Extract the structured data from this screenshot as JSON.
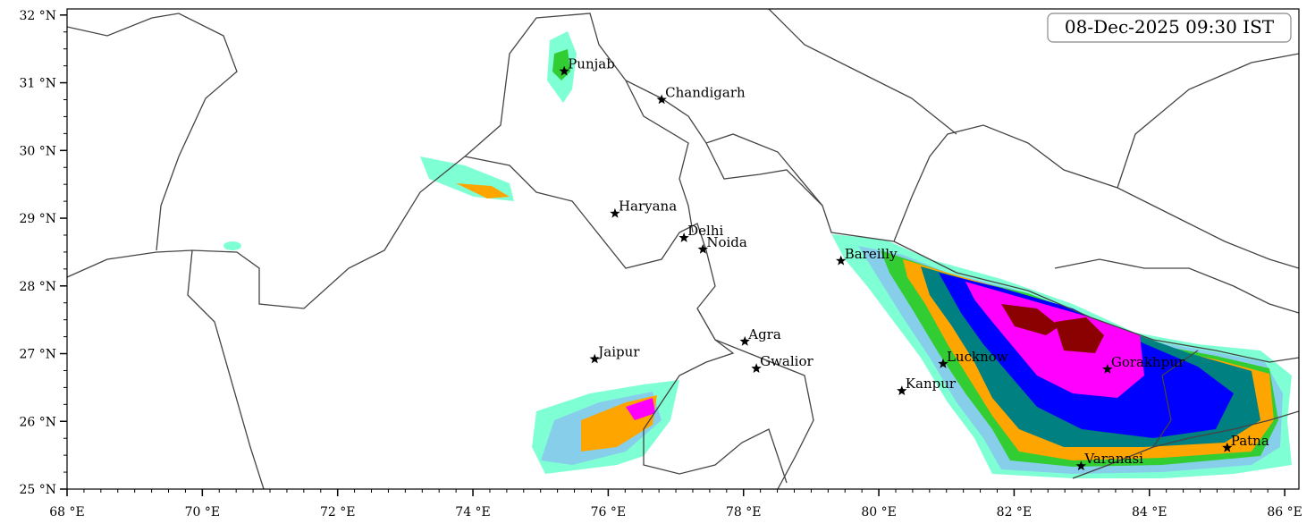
{
  "map": {
    "timestamp": "08-Dec-2025 09:30 IST",
    "xlim": [
      68,
      86.21
    ],
    "ylim": [
      25,
      32.09
    ],
    "xticks": [
      {
        "value": 68,
        "label": "68 °E"
      },
      {
        "value": 70,
        "label": "70 °E"
      },
      {
        "value": 72,
        "label": "72 °E"
      },
      {
        "value": 74,
        "label": "74 °E"
      },
      {
        "value": 76,
        "label": "76 °E"
      },
      {
        "value": 78,
        "label": "78 °E"
      },
      {
        "value": 80,
        "label": "80 °E"
      },
      {
        "value": 82,
        "label": "82 °E"
      },
      {
        "value": 84,
        "label": "84 °E"
      },
      {
        "value": 86,
        "label": "86 °E"
      }
    ],
    "yticks": [
      {
        "value": 25,
        "label": "25 °N"
      },
      {
        "value": 26,
        "label": "26 °N"
      },
      {
        "value": 27,
        "label": "27 °N"
      },
      {
        "value": 28,
        "label": "28 °N"
      },
      {
        "value": 29,
        "label": "29 °N"
      },
      {
        "value": 30,
        "label": "30 °N"
      },
      {
        "value": 31,
        "label": "31 °N"
      },
      {
        "value": 32,
        "label": "32 °N"
      }
    ],
    "cities": [
      {
        "name": "Punjab",
        "lon": 75.35,
        "lat": 31.17
      },
      {
        "name": "Chandigarh",
        "lon": 76.79,
        "lat": 30.75
      },
      {
        "name": "Haryana",
        "lon": 76.1,
        "lat": 29.07
      },
      {
        "name": "Delhi",
        "lon": 77.12,
        "lat": 28.71
      },
      {
        "name": "Noida",
        "lon": 77.4,
        "lat": 28.54
      },
      {
        "name": "Bareilly",
        "lon": 79.44,
        "lat": 28.37
      },
      {
        "name": "Agra",
        "lon": 78.02,
        "lat": 27.18
      },
      {
        "name": "Jaipur",
        "lon": 75.8,
        "lat": 26.92
      },
      {
        "name": "Gwalior",
        "lon": 78.19,
        "lat": 26.78
      },
      {
        "name": "Lucknow",
        "lon": 80.95,
        "lat": 26.85
      },
      {
        "name": "Kanpur",
        "lon": 80.34,
        "lat": 26.45
      },
      {
        "name": "Gorakhpur",
        "lon": 83.38,
        "lat": 26.77
      },
      {
        "name": "Varanasi",
        "lon": 82.99,
        "lat": 25.34
      },
      {
        "name": "Patna",
        "lon": 85.15,
        "lat": 25.61
      }
    ]
  }
}
